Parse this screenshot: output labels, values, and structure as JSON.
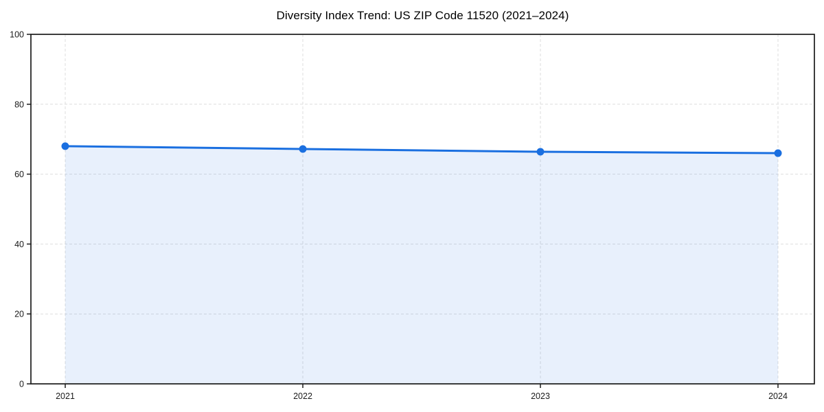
{
  "chart_data": {
    "type": "area",
    "title": "Diversity Index Trend: US ZIP Code 11520 (2021–2024)",
    "x": [
      "2021",
      "2022",
      "2023",
      "2024"
    ],
    "series": [
      {
        "name": "Diversity Index",
        "values": [
          68.0,
          67.2,
          66.4,
          66.0
        ]
      }
    ],
    "xlabel": "",
    "ylabel": "",
    "ylim": [
      0,
      100
    ],
    "yticks": [
      0,
      20,
      40,
      60,
      80,
      100
    ],
    "grid": true,
    "grid_style": "dashed",
    "legend": false,
    "line_color": "#1a6fe0",
    "marker_color": "#1a6fe0",
    "grid_color": "#dedede",
    "axis_color": "#1a1a1a",
    "fill_opacity": 0.1
  }
}
